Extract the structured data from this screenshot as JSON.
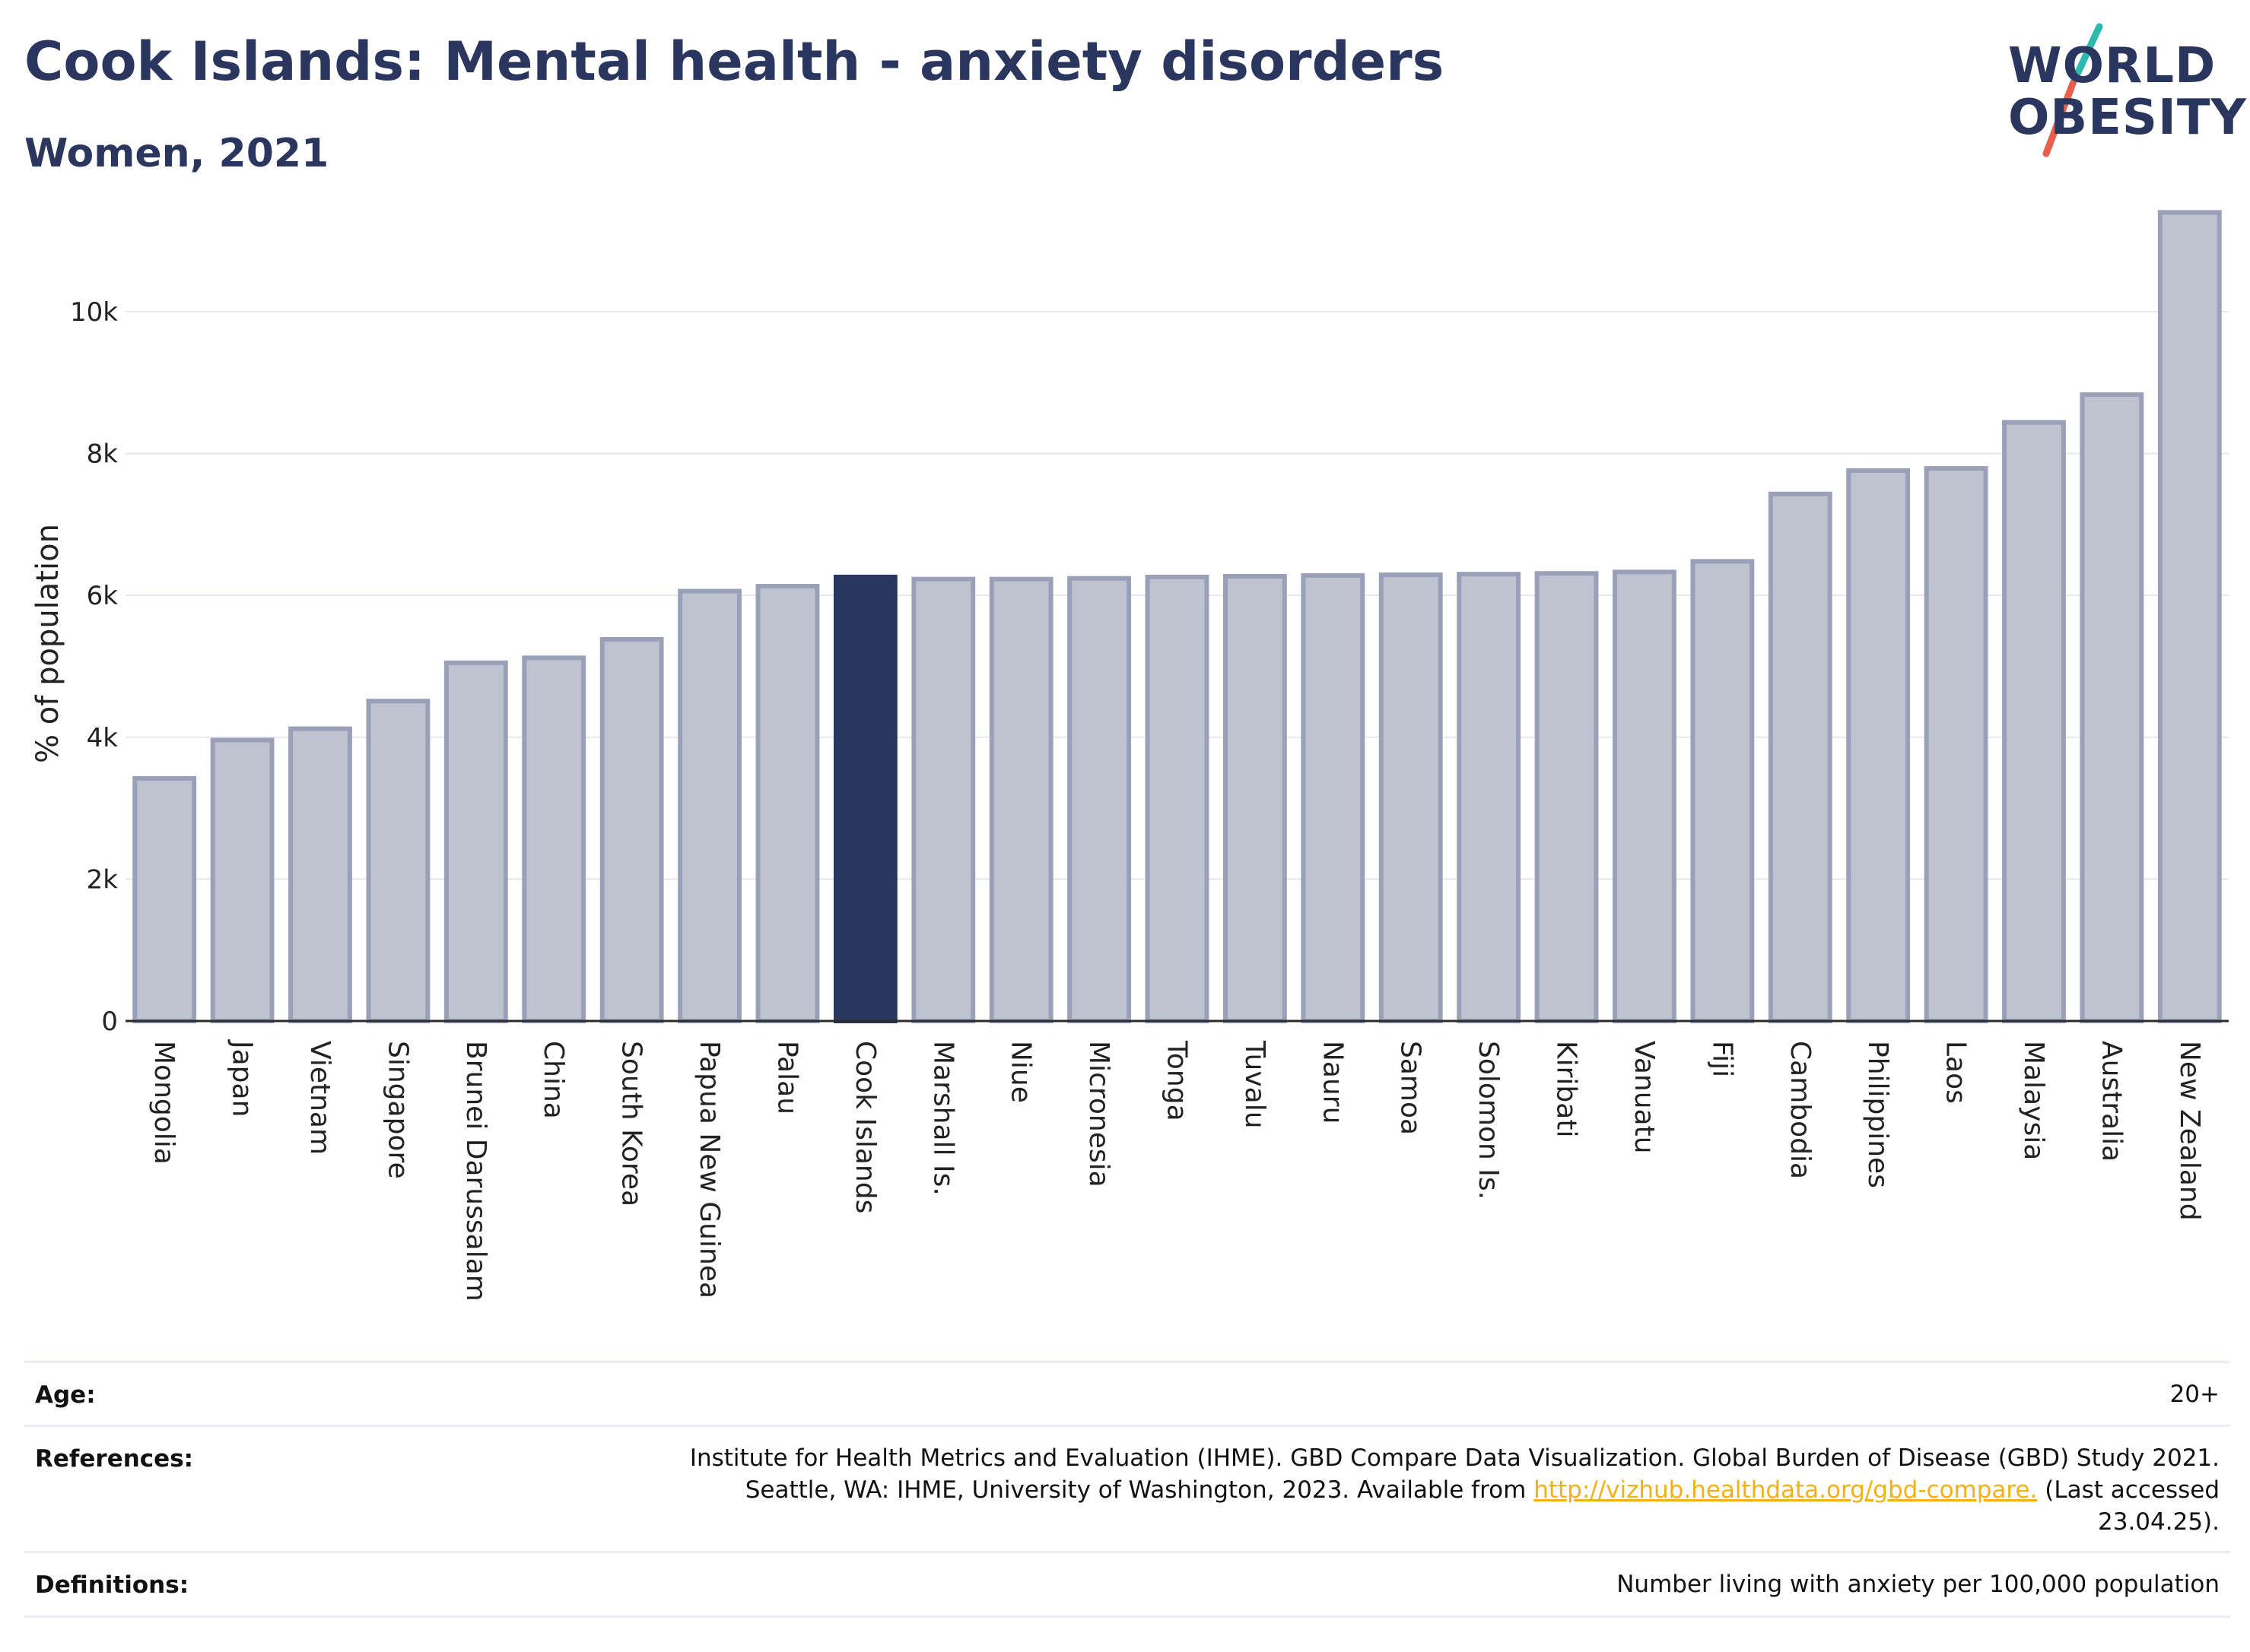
{
  "header": {
    "title": "Cook Islands: Mental health - anxiety disorders",
    "subtitle": "Women, 2021"
  },
  "logo": {
    "line1": "WORLD",
    "line2": "OBESITY",
    "colors": {
      "text": "#2b365f",
      "slash_top": "#2cb9b0",
      "slash_bottom": "#e8604c"
    }
  },
  "chart_data": {
    "type": "bar",
    "ylabel": "% of population",
    "xlabel": "",
    "ylim": [
      0,
      11500
    ],
    "yticks": [
      0,
      2000,
      4000,
      6000,
      8000,
      10000
    ],
    "ytick_labels": [
      "0",
      "2k",
      "4k",
      "6k",
      "8k",
      "10k"
    ],
    "grid": true,
    "highlight": "Cook Islands",
    "colors": {
      "bar": "#bfc3d0",
      "bar_edge": "#9aa0b8",
      "highlight": "#2b365f",
      "grid": "#e6e8ee",
      "axis": "#2b2b2b"
    },
    "categories": [
      "Mongolia",
      "Japan",
      "Vietnam",
      "Singapore",
      "Brunei Darussalam",
      "China",
      "South Korea",
      "Papua New Guinea",
      "Palau",
      "Cook Islands",
      "Marshall Is.",
      "Niue",
      "Micronesia",
      "Tonga",
      "Tuvalu",
      "Nauru",
      "Samoa",
      "Solomon Is.",
      "Kiribati",
      "Vanuatu",
      "Fiji",
      "Cambodia",
      "Philippines",
      "Laos",
      "Malaysia",
      "Australia",
      "New Zealand"
    ],
    "values": [
      3420,
      3960,
      4120,
      4510,
      5050,
      5120,
      5380,
      6060,
      6130,
      6260,
      6230,
      6230,
      6240,
      6260,
      6270,
      6280,
      6290,
      6300,
      6310,
      6330,
      6480,
      7430,
      7760,
      7790,
      8440,
      8830,
      11400
    ]
  },
  "meta": {
    "age_label": "Age:",
    "age_value": "20+",
    "references_label": "References:",
    "references_line1": "Institute for Health Metrics and Evaluation (IHME). GBD Compare Data Visualization. Global Burden of Disease (GBD) Study 2021.",
    "references_line2_pre": "Seattle, WA: IHME, University of Washington, 2023. Available from ",
    "references_link": "http://vizhub.healthdata.org/gbd-compare.",
    "references_line2_post": " (Last accessed",
    "references_line3": "23.04.25).",
    "definitions_label": "Definitions:",
    "definitions_value": "Number living with anxiety per 100,000 population"
  }
}
